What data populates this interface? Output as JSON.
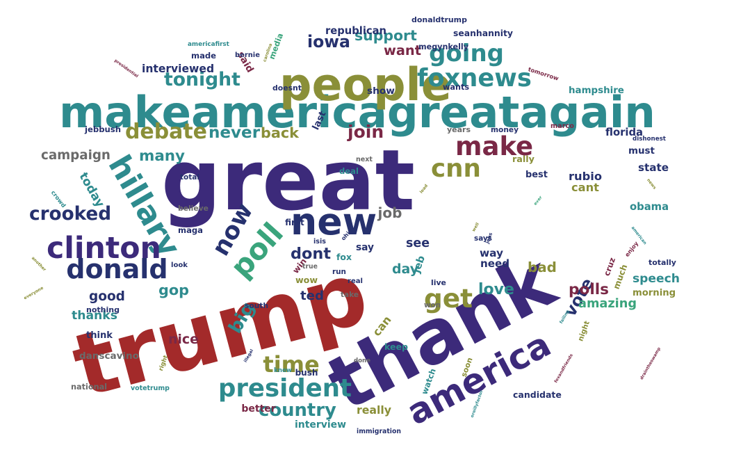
{
  "palette": {
    "red": "#a32a2a",
    "purple": "#3c2a7a",
    "teal": "#2e8b8e",
    "olive": "#8a8f38",
    "green": "#3aa47c",
    "navy": "#26316e",
    "maroon": "#7a2846",
    "grey": "#6a6a6a"
  },
  "words": [
    {
      "text": "trump",
      "color": "red"
    },
    {
      "text": "great",
      "color": "purple"
    },
    {
      "text": "thank",
      "color": "purple"
    },
    {
      "text": "makeamericagreatagain",
      "color": "teal"
    },
    {
      "text": "people",
      "color": "olive"
    },
    {
      "text": "hillary",
      "color": "teal"
    },
    {
      "text": "america",
      "color": "purple"
    },
    {
      "text": "new",
      "color": "navy"
    },
    {
      "text": "make",
      "color": "maroon"
    },
    {
      "text": "foxnews",
      "color": "teal"
    },
    {
      "text": "poll",
      "color": "green"
    },
    {
      "text": "clinton",
      "color": "purple"
    },
    {
      "text": "donald",
      "color": "navy"
    },
    {
      "text": "president",
      "color": "teal"
    },
    {
      "text": "now",
      "color": "navy"
    },
    {
      "text": "debate",
      "color": "olive"
    },
    {
      "text": "get",
      "color": "olive"
    },
    {
      "text": "cnn",
      "color": "olive"
    },
    {
      "text": "tonight",
      "color": "teal"
    },
    {
      "text": "going",
      "color": "teal"
    },
    {
      "text": "crooked",
      "color": "navy"
    },
    {
      "text": "vote",
      "color": "navy"
    },
    {
      "text": "big",
      "color": "teal"
    },
    {
      "text": "time",
      "color": "olive"
    },
    {
      "text": "today",
      "color": "teal"
    },
    {
      "text": "cruz",
      "color": "maroon"
    },
    {
      "text": "country",
      "color": "teal"
    },
    {
      "text": "can",
      "color": "olive"
    },
    {
      "text": "watch",
      "color": "teal"
    },
    {
      "text": "many",
      "color": "teal"
    },
    {
      "text": "iowa",
      "color": "navy"
    },
    {
      "text": "said",
      "color": "maroon"
    },
    {
      "text": "media",
      "color": "green"
    },
    {
      "text": "join",
      "color": "maroon"
    },
    {
      "text": "last",
      "color": "navy"
    },
    {
      "text": "back",
      "color": "olive"
    },
    {
      "text": "never",
      "color": "teal"
    },
    {
      "text": "want",
      "color": "maroon"
    },
    {
      "text": "support",
      "color": "teal"
    },
    {
      "text": "tomorrow",
      "color": "maroon"
    },
    {
      "text": "interviewed",
      "color": "navy"
    },
    {
      "text": "carolina",
      "color": "olive"
    },
    {
      "text": "republican",
      "color": "navy"
    },
    {
      "text": "campaign",
      "color": "grey"
    },
    {
      "text": "crowd",
      "color": "teal"
    },
    {
      "text": "good",
      "color": "navy"
    },
    {
      "text": "gop",
      "color": "teal"
    },
    {
      "text": "thanks",
      "color": "teal"
    },
    {
      "text": "nice",
      "color": "maroon"
    },
    {
      "text": "win",
      "color": "maroon"
    },
    {
      "text": "dont",
      "color": "navy"
    },
    {
      "text": "see",
      "color": "navy"
    },
    {
      "text": "jeb",
      "color": "teal"
    },
    {
      "text": "ted",
      "color": "navy"
    },
    {
      "text": "wow",
      "color": "olive"
    },
    {
      "text": "love",
      "color": "teal"
    },
    {
      "text": "bad",
      "color": "olive"
    },
    {
      "text": "much",
      "color": "olive"
    },
    {
      "text": "enjoy",
      "color": "maroon"
    },
    {
      "text": "polls",
      "color": "maroon"
    },
    {
      "text": "night",
      "color": "olive"
    },
    {
      "text": "amazing",
      "color": "green"
    },
    {
      "text": "rubio",
      "color": "navy"
    },
    {
      "text": "cant",
      "color": "olive"
    },
    {
      "text": "obama",
      "color": "teal"
    },
    {
      "text": "american",
      "color": "teal"
    },
    {
      "text": "speech",
      "color": "teal"
    },
    {
      "text": "morning",
      "color": "olive"
    },
    {
      "text": "really",
      "color": "olive"
    },
    {
      "text": "interview",
      "color": "teal"
    },
    {
      "text": "day",
      "color": "teal"
    },
    {
      "text": "job",
      "color": "grey"
    },
    {
      "text": "need",
      "color": "navy"
    },
    {
      "text": "way",
      "color": "navy"
    },
    {
      "text": "florida",
      "color": "navy"
    },
    {
      "text": "must",
      "color": "navy"
    },
    {
      "text": "state",
      "color": "navy"
    },
    {
      "text": "news",
      "color": "olive"
    },
    {
      "text": "best",
      "color": "navy"
    },
    {
      "text": "hampshire",
      "color": "teal"
    },
    {
      "text": "show",
      "color": "navy"
    },
    {
      "text": "megynkelly",
      "color": "navy"
    },
    {
      "text": "seanhannity",
      "color": "navy"
    },
    {
      "text": "donaldtrump",
      "color": "navy"
    },
    {
      "text": "made",
      "color": "navy"
    },
    {
      "text": "americafirst",
      "color": "teal"
    },
    {
      "text": "bernie",
      "color": "navy"
    },
    {
      "text": "presidential",
      "color": "maroon"
    },
    {
      "text": "doesnt",
      "color": "navy"
    },
    {
      "text": "wants",
      "color": "navy"
    },
    {
      "text": "jebbush",
      "color": "navy"
    },
    {
      "text": "national",
      "color": "grey"
    },
    {
      "text": "marco",
      "color": "maroon"
    },
    {
      "text": "years",
      "color": "grey"
    },
    {
      "text": "money",
      "color": "navy"
    },
    {
      "text": "dishonest",
      "color": "navy"
    },
    {
      "text": "next",
      "color": "grey"
    },
    {
      "text": "deal",
      "color": "teal"
    },
    {
      "text": "rally",
      "color": "olive"
    },
    {
      "text": "total",
      "color": "navy"
    },
    {
      "text": "ever",
      "color": "green"
    },
    {
      "text": "lead",
      "color": "olive"
    },
    {
      "text": "first",
      "color": "navy"
    },
    {
      "text": "believe",
      "color": "grey"
    },
    {
      "text": "maga",
      "color": "navy"
    },
    {
      "text": "isis",
      "color": "navy"
    },
    {
      "text": "ohio",
      "color": "navy"
    },
    {
      "text": "well",
      "color": "olive"
    },
    {
      "text": "says",
      "color": "navy"
    },
    {
      "text": "jobs",
      "color": "navy"
    },
    {
      "text": "say",
      "color": "navy"
    },
    {
      "text": "another",
      "color": "olive"
    },
    {
      "text": "votetrump",
      "color": "teal"
    },
    {
      "text": "look",
      "color": "navy"
    },
    {
      "text": "fox",
      "color": "teal"
    },
    {
      "text": "run",
      "color": "navy"
    },
    {
      "text": "true",
      "color": "grey"
    },
    {
      "text": "real",
      "color": "navy"
    },
    {
      "text": "totally",
      "color": "navy"
    },
    {
      "text": "everyone",
      "color": "olive"
    },
    {
      "text": "nothing",
      "color": "navy"
    },
    {
      "text": "live",
      "color": "navy"
    },
    {
      "text": "take",
      "color": "grey"
    },
    {
      "text": "won",
      "color": "grey"
    },
    {
      "text": "failing",
      "color": "teal"
    },
    {
      "text": "south",
      "color": "navy"
    },
    {
      "text": "think",
      "color": "navy"
    },
    {
      "text": "right",
      "color": "olive"
    },
    {
      "text": "illegal",
      "color": "navy"
    },
    {
      "text": "done",
      "color": "grey"
    },
    {
      "text": "keep",
      "color": "teal"
    },
    {
      "text": "soon",
      "color": "olive"
    },
    {
      "text": "candidate",
      "color": "navy"
    },
    {
      "text": "foxandfriends",
      "color": "maroon"
    },
    {
      "text": "draintheswamp",
      "color": "maroon"
    },
    {
      "text": "danscavino",
      "color": "grey"
    },
    {
      "text": "know",
      "color": "teal"
    },
    {
      "text": "bush",
      "color": "navy"
    },
    {
      "text": "better",
      "color": "maroon"
    },
    {
      "text": "immigration",
      "color": "navy"
    },
    {
      "text": "oreillyfactor",
      "color": "teal"
    }
  ]
}
